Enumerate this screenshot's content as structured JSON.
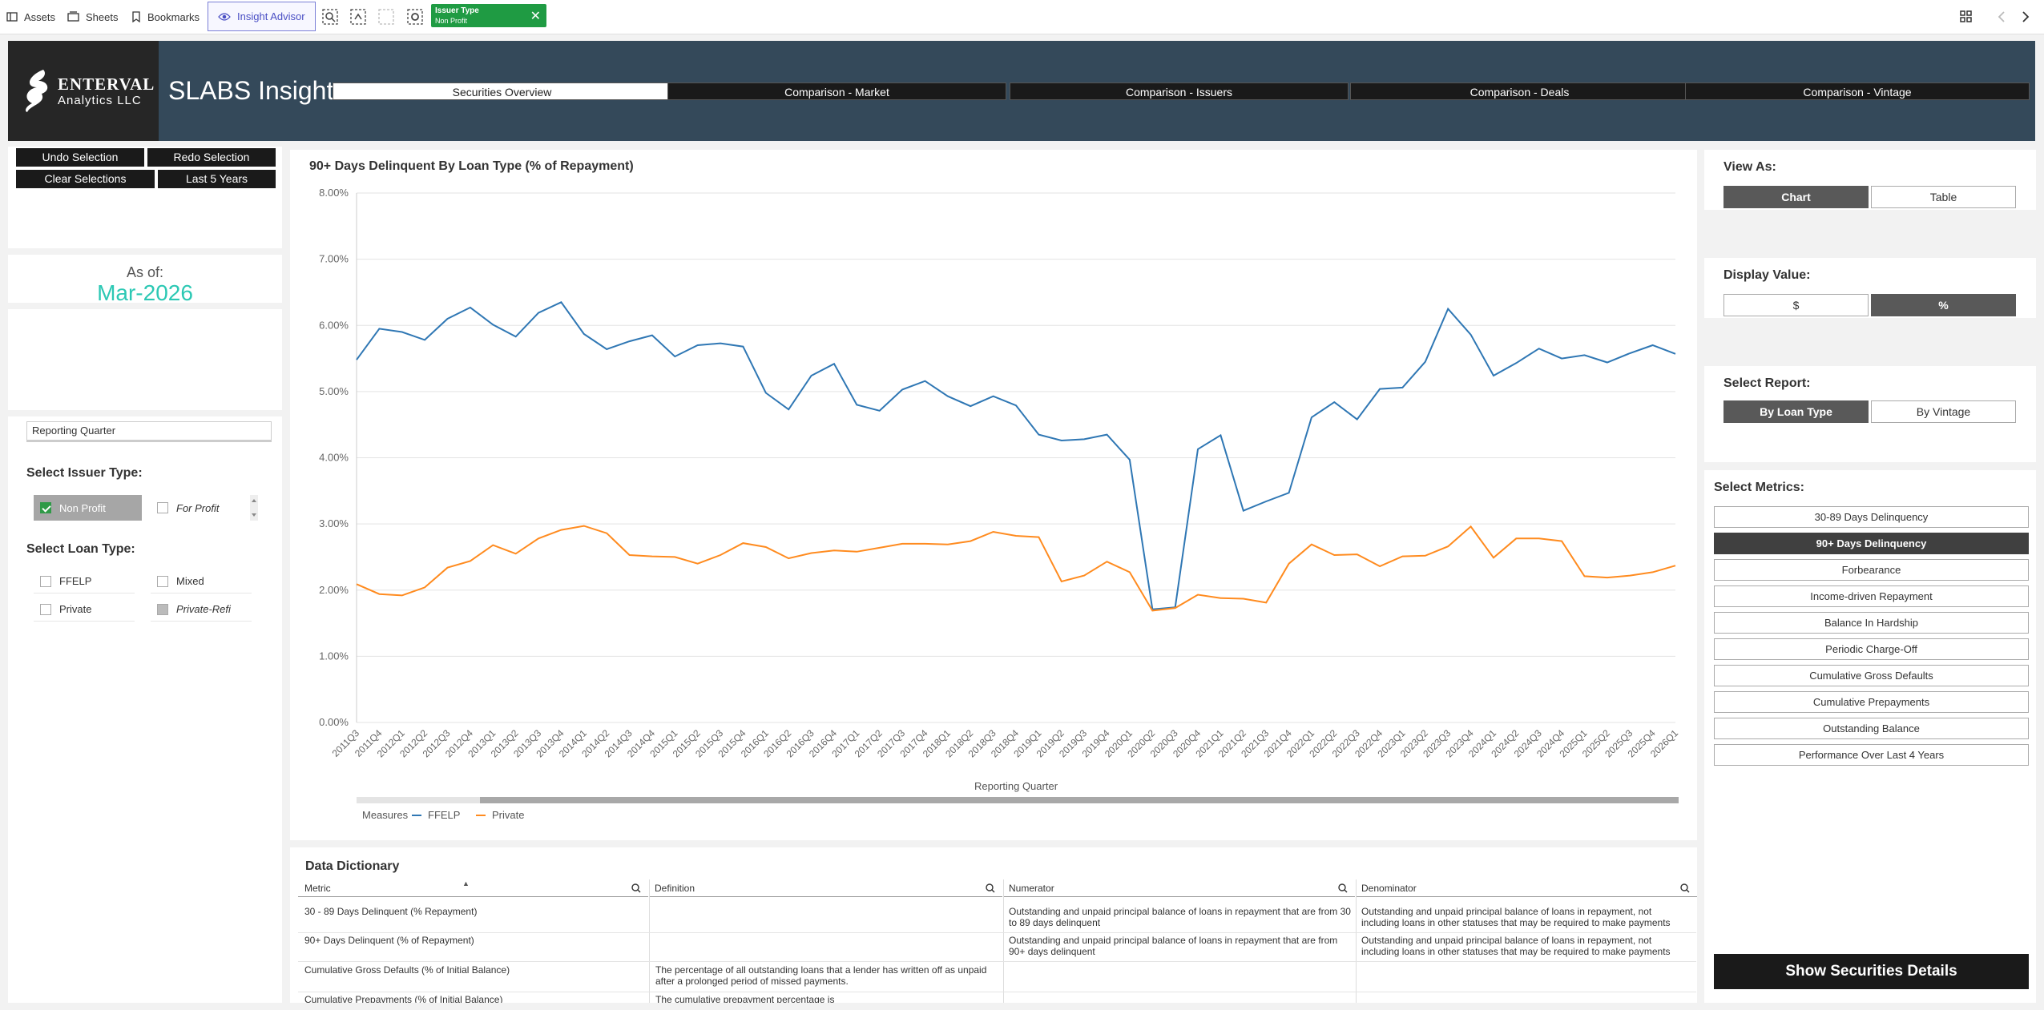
{
  "toolbar": {
    "assets": "Assets",
    "sheets": "Sheets",
    "bookmarks": "Bookmarks",
    "insight_advisor": "Insight Advisor",
    "chip_title": "Issuer Type",
    "chip_value": "Non Profit"
  },
  "header": {
    "logo_line1": "ENTERVAL",
    "logo_line2": "Analytics LLC",
    "title": "SLABS Insight",
    "tabs": [
      "Securities Overview",
      "Comparison - Market",
      "Comparison - Issuers",
      "Comparison - Deals",
      "Comparison - Vintage"
    ]
  },
  "left": {
    "undo": "Undo Selection",
    "redo": "Redo Selection",
    "clear": "Clear Selections",
    "last5": "Last 5 Years",
    "asof_label": "As of:",
    "asof_value": "Mar-2026",
    "reporting_quarter": "Reporting Quarter",
    "issuer_title": "Select Issuer Type:",
    "issuer_options": [
      "Non Profit",
      "For Profit"
    ],
    "loan_title": "Select Loan Type:",
    "loan_options": [
      "FFELP",
      "Mixed",
      "Private",
      "Private-Refi"
    ]
  },
  "chart": {
    "title": "90+ Days Delinquent By Loan Type (% of Repayment)",
    "xlabel": "Reporting Quarter",
    "measures_label": "Measures"
  },
  "chart_data": {
    "type": "line",
    "title": "90+ Days Delinquent By Loan Type (% of Repayment)",
    "xlabel": "Reporting Quarter",
    "ylabel": "",
    "ylim": [
      0,
      8
    ],
    "yticks": [
      "0.00%",
      "1.00%",
      "2.00%",
      "3.00%",
      "4.00%",
      "5.00%",
      "6.00%",
      "7.00%",
      "8.00%"
    ],
    "legend": "bottom-left",
    "x": [
      "2011Q3",
      "2011Q4",
      "2012Q1",
      "2012Q2",
      "2012Q3",
      "2012Q4",
      "2013Q1",
      "2013Q2",
      "2013Q3",
      "2013Q4",
      "2014Q1",
      "2014Q2",
      "2014Q3",
      "2014Q4",
      "2015Q1",
      "2015Q2",
      "2015Q3",
      "2015Q4",
      "2016Q1",
      "2016Q2",
      "2016Q3",
      "2016Q4",
      "2017Q1",
      "2017Q2",
      "2017Q3",
      "2017Q4",
      "2018Q1",
      "2018Q2",
      "2018Q3",
      "2018Q4",
      "2019Q1",
      "2019Q2",
      "2019Q3",
      "2019Q4",
      "2020Q1",
      "2020Q2",
      "2020Q3",
      "2020Q4",
      "2021Q1",
      "2021Q2",
      "2021Q3",
      "2021Q4",
      "2022Q1",
      "2022Q2",
      "2022Q3",
      "2022Q4",
      "2023Q1",
      "2023Q2",
      "2023Q3",
      "2023Q4",
      "2024Q1",
      "2024Q2",
      "2024Q3",
      "2024Q4",
      "2025Q1",
      "2025Q2",
      "2025Q3",
      "2025Q4",
      "2026Q1"
    ],
    "series": [
      {
        "name": "FFELP",
        "color": "#2f77b4",
        "values": [
          5.48,
          5.95,
          5.9,
          5.78,
          6.1,
          6.27,
          6.01,
          5.83,
          6.19,
          6.35,
          5.87,
          5.64,
          5.76,
          5.85,
          5.53,
          5.7,
          5.73,
          5.68,
          4.98,
          4.73,
          5.24,
          5.42,
          4.8,
          4.71,
          5.03,
          5.16,
          4.93,
          4.78,
          4.93,
          4.79,
          4.35,
          4.26,
          4.28,
          4.35,
          3.97,
          1.71,
          1.74,
          4.13,
          4.34,
          3.2,
          3.34,
          3.47,
          4.61,
          4.84,
          4.58,
          5.04,
          5.06,
          5.45,
          6.25,
          5.86,
          5.24,
          5.43,
          5.65,
          5.5,
          5.55,
          5.44,
          5.58,
          5.7,
          5.57
        ]
      },
      {
        "name": "Private",
        "color": "#ff8b1f",
        "values": [
          2.09,
          1.94,
          1.92,
          2.04,
          2.34,
          2.44,
          2.68,
          2.55,
          2.78,
          2.91,
          2.97,
          2.86,
          2.53,
          2.51,
          2.5,
          2.4,
          2.53,
          2.71,
          2.65,
          2.48,
          2.56,
          2.6,
          2.58,
          2.64,
          2.7,
          2.7,
          2.69,
          2.74,
          2.88,
          2.82,
          2.8,
          2.13,
          2.22,
          2.43,
          2.27,
          1.69,
          1.73,
          1.93,
          1.88,
          1.87,
          1.81,
          2.4,
          2.69,
          2.53,
          2.54,
          2.36,
          2.51,
          2.52,
          2.66,
          2.96,
          2.49,
          2.78,
          2.78,
          2.74,
          2.21,
          2.19,
          2.22,
          2.27,
          2.37
        ]
      }
    ]
  },
  "right": {
    "view_as": "View As:",
    "view_options": [
      "Chart",
      "Table"
    ],
    "display_value": "Display Value:",
    "display_options": [
      "$",
      "%"
    ],
    "select_report": "Select Report:",
    "report_options": [
      "By Loan Type",
      "By Vintage"
    ],
    "select_metrics": "Select Metrics:",
    "metrics": [
      "30-89 Days Delinquency",
      "90+ Days Delinquency",
      "Forbearance",
      "Income-driven Repayment",
      "Balance In Hardship",
      "Periodic Charge-Off",
      "Cumulative Gross Defaults",
      "Cumulative Prepayments",
      "Outstanding Balance",
      "Performance Over Last 4 Years"
    ],
    "show_details": "Show Securities Details"
  },
  "dictionary": {
    "title": "Data Dictionary",
    "headers": [
      "Metric",
      "Definition",
      "Numerator",
      "Denominator"
    ],
    "rows": [
      {
        "metric": "30 - 89 Days Delinquent (% Repayment)",
        "definition": "",
        "numerator": "Outstanding and unpaid principal balance of loans in repayment that are from 30 to 89 days delinquent",
        "denominator": "Outstanding and unpaid principal balance of loans in repayment, not including loans in other statuses that may be required to make payments"
      },
      {
        "metric": "90+ Days Delinquent (% of Repayment)",
        "definition": "",
        "numerator": "Outstanding and unpaid principal balance of loans in repayment that are from 90+ days delinquent",
        "denominator": "Outstanding and unpaid principal balance of loans in repayment, not including loans in other statuses that may be required to make payments"
      },
      {
        "metric": "Cumulative Gross Defaults (% of Initial Balance)",
        "definition": "The percentage of all outstanding loans that a lender has written off as unpaid after a prolonged period of missed payments.",
        "numerator": "",
        "denominator": ""
      },
      {
        "metric": "Cumulative Prepayments (% of Initial Balance)",
        "definition": "The cumulative prepayment percentage is",
        "numerator": "",
        "denominator": ""
      }
    ]
  }
}
